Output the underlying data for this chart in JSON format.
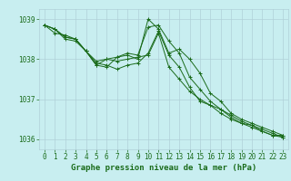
{
  "bg_color": "#c8eef0",
  "grid_color": "#b0d0d8",
  "line_color": "#1a6b1a",
  "marker_color": "#1a6b1a",
  "xlabel": "Graphe pression niveau de la mer (hPa)",
  "xlabel_color": "#1a6b1a",
  "xlabel_fontsize": 6.5,
  "tick_color": "#1a6b1a",
  "tick_fontsize": 5.5,
  "ylim": [
    1035.75,
    1039.25
  ],
  "xlim": [
    -0.5,
    23.5
  ],
  "yticks": [
    1036,
    1037,
    1038,
    1039
  ],
  "xticks": [
    0,
    1,
    2,
    3,
    4,
    5,
    6,
    7,
    8,
    9,
    10,
    11,
    12,
    13,
    14,
    15,
    16,
    17,
    18,
    19,
    20,
    21,
    22,
    23
  ],
  "series": [
    [
      1038.85,
      1038.75,
      1038.55,
      1038.5,
      1038.2,
      1037.95,
      1038.0,
      1037.95,
      1038.0,
      1038.05,
      1038.1,
      1038.65,
      1037.8,
      1037.5,
      1037.2,
      1037.0,
      1036.85,
      1036.75,
      1036.6,
      1036.45,
      1036.35,
      1036.25,
      1036.15,
      1036.05
    ],
    [
      1038.85,
      1038.75,
      1038.55,
      1038.5,
      1038.2,
      1037.9,
      1037.85,
      1037.75,
      1037.85,
      1037.9,
      1038.15,
      1038.7,
      1038.1,
      1037.8,
      1037.3,
      1036.95,
      1036.85,
      1036.65,
      1036.5,
      1036.4,
      1036.3,
      1036.2,
      1036.1,
      1036.05
    ],
    [
      1038.85,
      1038.65,
      1038.6,
      1038.5,
      1038.2,
      1037.85,
      1038.0,
      1038.05,
      1038.15,
      1038.1,
      1038.8,
      1038.85,
      1038.45,
      1038.15,
      1037.55,
      1037.25,
      1036.95,
      1036.75,
      1036.55,
      1036.4,
      1036.35,
      1036.2,
      1036.1,
      1036.1
    ],
    [
      1038.85,
      1038.75,
      1038.5,
      1038.45,
      1038.2,
      1037.85,
      1037.8,
      1038.05,
      1038.1,
      1038.0,
      1039.0,
      1038.75,
      1038.15,
      1038.25,
      1038.0,
      1037.65,
      1037.15,
      1036.95,
      1036.65,
      1036.5,
      1036.4,
      1036.3,
      1036.2,
      1036.1
    ]
  ]
}
